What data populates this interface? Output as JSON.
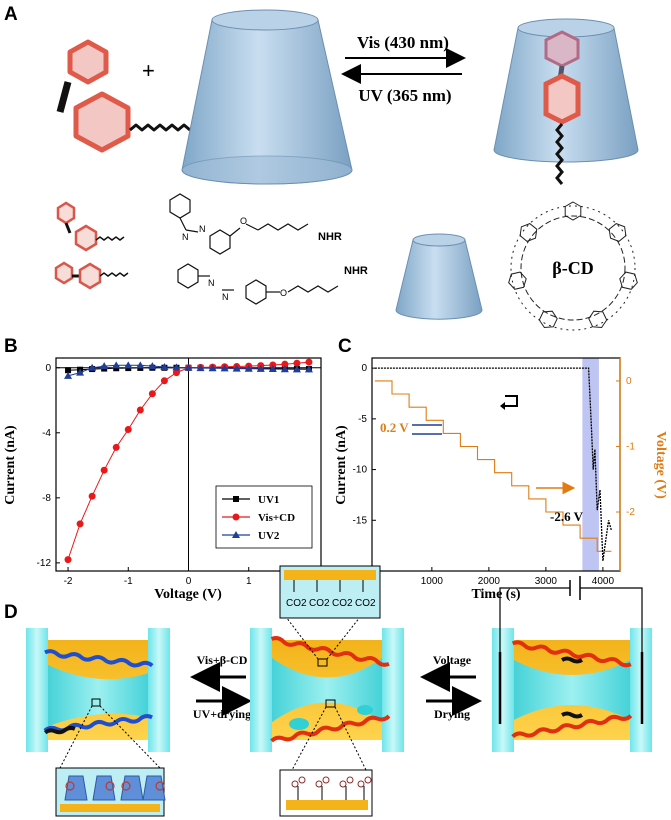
{
  "panels": {
    "a": {
      "letter": "A",
      "plus": "+",
      "forward_label": "Vis (430 nm)",
      "reverse_label": "UV (365 nm)",
      "nhr_1": "NHR",
      "nhr_2": "NHR",
      "o_1": "O",
      "o_2": "O",
      "n_1": "N",
      "n_2": "N",
      "n_3": "N",
      "n_4": "N",
      "cd_name": "β-CD"
    },
    "b": {
      "letter": "B",
      "xlabel": "Voltage (V)",
      "ylabel": "Current (nA)",
      "legend": [
        "UV1",
        "Vis+CD",
        "UV2"
      ]
    },
    "c": {
      "letter": "C",
      "xlabel": "Time (s)",
      "ylabel": "Current (nA)",
      "y2label": "Voltage (V)",
      "annotation_step": "0.2 V",
      "annotation_final": "-2.6 V"
    },
    "d": {
      "letter": "D",
      "arrow_1_top": "Vis+β-CD",
      "arrow_1_bottom": "UV+drying",
      "arrow_2_top": "Voltage",
      "arrow_2_bottom": "Drying",
      "co2_labels": [
        "CO2",
        "CO2",
        "CO2",
        "CO2"
      ]
    }
  },
  "chart_data": [
    {
      "type": "line",
      "panel": "B",
      "title": "",
      "xlabel": "Voltage (V)",
      "ylabel": "Current (nA)",
      "xlim": [
        -2.2,
        2.2
      ],
      "ylim": [
        -12.5,
        0.6
      ],
      "xticks": [
        -2,
        -1,
        0,
        1,
        2
      ],
      "yticks": [
        0,
        -4,
        -8,
        -12
      ],
      "legend_position": "right",
      "x": [
        -2.0,
        -1.8,
        -1.6,
        -1.4,
        -1.2,
        -1.0,
        -0.8,
        -0.6,
        -0.4,
        -0.2,
        0.0,
        0.2,
        0.4,
        0.6,
        0.8,
        1.0,
        1.2,
        1.4,
        1.6,
        1.8,
        2.0
      ],
      "series": [
        {
          "name": "UV1",
          "color": "#000000",
          "marker": "square",
          "values": [
            -0.15,
            -0.12,
            -0.08,
            -0.05,
            -0.03,
            -0.02,
            -0.01,
            0.0,
            0.0,
            0.0,
            0.0,
            0.0,
            0.0,
            0.0,
            -0.01,
            -0.02,
            -0.03,
            -0.04,
            -0.05,
            -0.07,
            -0.08
          ]
        },
        {
          "name": "Vis+CD",
          "color": "#e8191a",
          "marker": "circle",
          "values": [
            -11.8,
            -9.6,
            -7.9,
            -6.3,
            -4.9,
            -3.8,
            -2.6,
            -1.6,
            -0.8,
            -0.3,
            0.0,
            0.02,
            0.04,
            0.06,
            0.08,
            0.1,
            0.13,
            0.17,
            0.22,
            0.28,
            0.35
          ]
        },
        {
          "name": "UV2",
          "color": "#1f3d99",
          "marker": "triangle",
          "values": [
            -0.5,
            -0.3,
            0.0,
            0.1,
            0.15,
            0.15,
            0.15,
            0.1,
            0.05,
            0.02,
            0.0,
            -0.02,
            -0.03,
            -0.04,
            -0.05,
            -0.06,
            -0.07,
            -0.08,
            -0.09,
            -0.1,
            -0.1
          ]
        }
      ]
    },
    {
      "type": "line",
      "panel": "C",
      "title": "",
      "xlabel": "Time (s)",
      "ylabel": "Current (nA)",
      "y2label": "Voltage (V)",
      "xlim": [
        -50,
        4300
      ],
      "ylim": [
        -20,
        1
      ],
      "y2lim": [
        -2.9,
        0.35
      ],
      "xticks": [
        0,
        1000,
        2000,
        3000,
        4000
      ],
      "yticks": [
        0,
        -5,
        -10,
        -15,
        -20
      ],
      "y2ticks": [
        0,
        -1,
        -2
      ],
      "highlight_x": [
        3640,
        3930
      ],
      "current_series": {
        "color": "#000000",
        "x": [
          0,
          300,
          600,
          900,
          1200,
          1500,
          1800,
          2100,
          2400,
          2700,
          3000,
          3300,
          3600,
          3750,
          3800,
          3830,
          3860,
          3900,
          3950,
          4000,
          4050,
          4100,
          4150
        ],
        "values": [
          0,
          0,
          0,
          0,
          0,
          0,
          0,
          0,
          0,
          0,
          0,
          0,
          0,
          0,
          -6,
          -10,
          -8,
          -14,
          -12,
          -19,
          -17,
          -15,
          -16
        ]
      },
      "voltage_series": {
        "color": "#e07c12",
        "x": [
          0,
          300,
          300,
          600,
          600,
          900,
          900,
          1200,
          1200,
          1500,
          1500,
          1800,
          1800,
          2100,
          2100,
          2400,
          2400,
          2700,
          2700,
          3000,
          3000,
          3300,
          3300,
          3600,
          3600,
          3900,
          3900,
          4150
        ],
        "values": [
          0,
          0,
          -0.2,
          -0.2,
          -0.4,
          -0.4,
          -0.6,
          -0.6,
          -0.8,
          -0.8,
          -1.0,
          -1.0,
          -1.2,
          -1.2,
          -1.4,
          -1.4,
          -1.6,
          -1.6,
          -1.8,
          -1.8,
          -2.0,
          -2.0,
          -2.2,
          -2.2,
          -2.4,
          -2.4,
          -2.6,
          -2.6
        ]
      }
    }
  ]
}
